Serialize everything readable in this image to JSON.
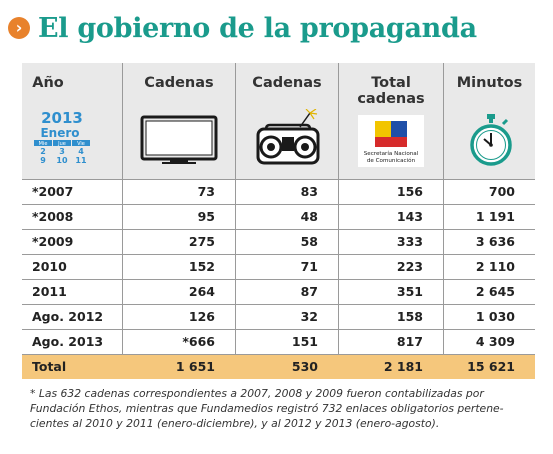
{
  "title": "El gobierno de la propaganda",
  "title_bullet_icon": "chevron-right-icon",
  "colors": {
    "title": "#1a9b8c",
    "bullet": "#e8822c",
    "header_bg": "#e9e9e9",
    "total_bg": "#f5c77c",
    "calendar": "#2f8fce"
  },
  "calendar": {
    "year": "2013",
    "month": "Enero",
    "days": [
      "Mie",
      "Jue",
      "Vie"
    ],
    "nums": [
      "2",
      "3",
      "4",
      "9",
      "10",
      "11"
    ]
  },
  "logo": {
    "line1": "Secretaría Nacional",
    "line2": "de Comunicación"
  },
  "chart_data": {
    "type": "table",
    "columns": [
      {
        "label": "Año",
        "icon": "calendar-icon"
      },
      {
        "label": "Cadenas",
        "icon": "tv-icon"
      },
      {
        "label": "Cadenas",
        "icon": "radio-icon"
      },
      {
        "label": "Total cadenas",
        "icon": "secom-logo-icon"
      },
      {
        "label": "Minutos",
        "icon": "stopwatch-icon"
      }
    ],
    "rows": [
      [
        "*2007",
        "73",
        "83",
        "156",
        "700"
      ],
      [
        "*2008",
        "95",
        "48",
        "143",
        "1 191"
      ],
      [
        "*2009",
        "275",
        "58",
        "333",
        "3 636"
      ],
      [
        "2010",
        "152",
        "71",
        "223",
        "2 110"
      ],
      [
        "2011",
        "264",
        "87",
        "351",
        "2 645"
      ],
      [
        "Ago. 2012",
        "126",
        "32",
        "158",
        "1 030"
      ],
      [
        "Ago. 2013",
        "*666",
        "151",
        "817",
        "4 309"
      ]
    ],
    "total": [
      "Total",
      "1 651",
      "530",
      "2 181",
      "15 621"
    ]
  },
  "note": "* Las 632 cadenas correspondientes a 2007, 2008 y 2009 fueron contabilizadas por Fundación Ethos, mientras que Fundamedios registró 732 enlaces obligatorios pertene- cientes al 2010 y 2011 (enero-diciembre), y al 2012 y 2013 (enero-agosto)."
}
